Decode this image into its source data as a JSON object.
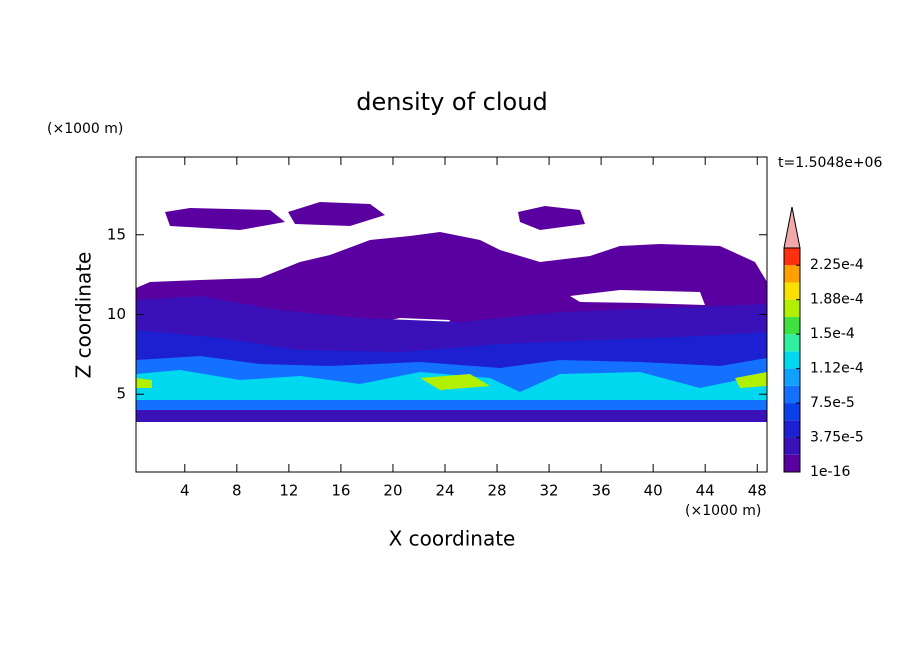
{
  "chart_data": {
    "type": "contour",
    "title": "density of cloud",
    "xlabel": "X coordinate",
    "ylabel": "Z coordinate",
    "xunit": "(×1000 m)",
    "yunit": "(×1000 m)",
    "annotation": "t=1.5048e+06",
    "xlim": [
      0.25,
      48.75
    ],
    "ylim": [
      0.125,
      19.875
    ],
    "xticks": [
      4,
      8,
      12,
      16,
      20,
      24,
      28,
      32,
      36,
      40,
      44,
      48
    ],
    "yticks": [
      5,
      10,
      15
    ],
    "colorbar": {
      "levels": [
        1e-16,
        1.875e-05,
        3.75e-05,
        5.625e-05,
        7.5e-05,
        9.375e-05,
        0.0001125,
        0.00013125,
        0.00015,
        0.00016875,
        0.0001875,
        0.00020625,
        0.000225,
        0.00024375
      ],
      "colors": [
        "#5b00a0",
        "#3a10b8",
        "#1c20d0",
        "#0a40e8",
        "#1470ff",
        "#10a0ff",
        "#00d8f0",
        "#30f0a0",
        "#40e040",
        "#b0f000",
        "#f8e000",
        "#ffa000",
        "#ff3010"
      ],
      "over_color": "#f0a8a8",
      "ticks": [
        {
          "value": 1e-16,
          "label": "1e-16"
        },
        {
          "value": 3.75e-05,
          "label": "3.75e-5"
        },
        {
          "value": 7.5e-05,
          "label": "7.5e-5"
        },
        {
          "value": 0.0001125,
          "label": "1.12e-4"
        },
        {
          "value": 0.00015,
          "label": "1.5e-4"
        },
        {
          "value": 0.0001875,
          "label": "1.88e-4"
        },
        {
          "value": 0.000225,
          "label": "2.25e-4"
        }
      ]
    }
  }
}
